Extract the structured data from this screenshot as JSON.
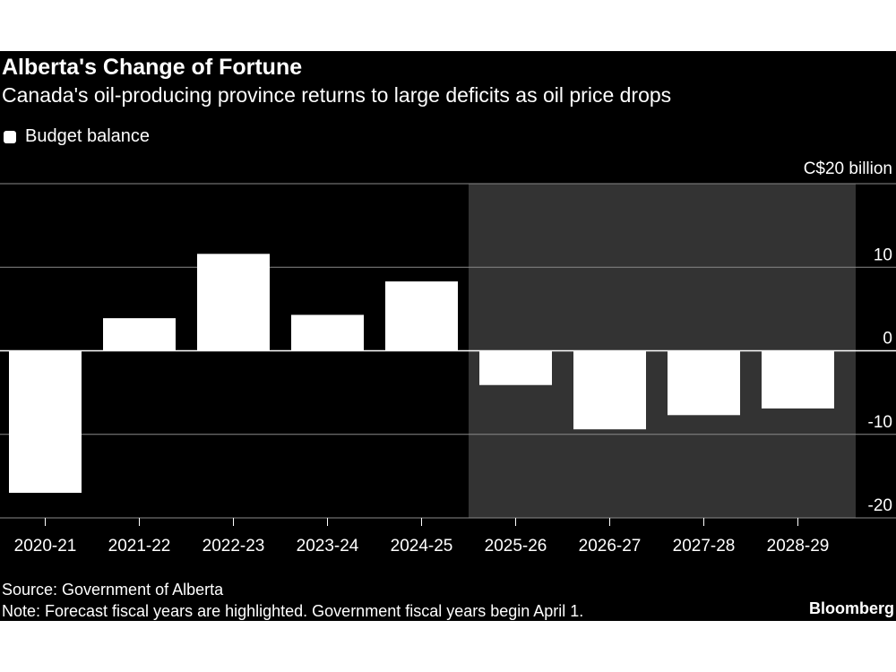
{
  "chart_data": {
    "type": "bar",
    "title": "Alberta's Change of Fortune",
    "subtitle": "Canada's oil-producing province returns to large deficits as oil price drops",
    "legend": [
      {
        "label": "Budget balance",
        "color": "#ffffff"
      }
    ],
    "unit_label": "C$20 billion",
    "categories": [
      "2020-21",
      "2021-22",
      "2022-23",
      "2023-24",
      "2024-25",
      "2025-26",
      "2026-27",
      "2027-28",
      "2028-29"
    ],
    "series": [
      {
        "name": "Budget balance",
        "values": [
          -17.0,
          3.9,
          11.6,
          4.3,
          8.3,
          -4.1,
          -9.4,
          -7.7,
          -6.9
        ]
      }
    ],
    "highlight": {
      "from_index": 5,
      "to_index": 8,
      "label": "Forecast fiscal years",
      "color": "#333333"
    },
    "ylim": [
      -20,
      20
    ],
    "yticks": [
      -20,
      -10,
      0,
      10,
      20
    ],
    "ytick_labels": [
      "-20",
      "-10",
      "0",
      "10",
      ""
    ],
    "ylabel": "",
    "xlabel": "",
    "grid": true,
    "legend_position": "top-left",
    "bar_color": "#ffffff",
    "background_color": "#000000",
    "gridline_color": "#8a8a8a"
  },
  "footer": {
    "source": "Source: Government of Alberta",
    "note": "Note: Forecast fiscal years are highlighted. Government fiscal years begin April 1.",
    "brand": "Bloomberg"
  }
}
